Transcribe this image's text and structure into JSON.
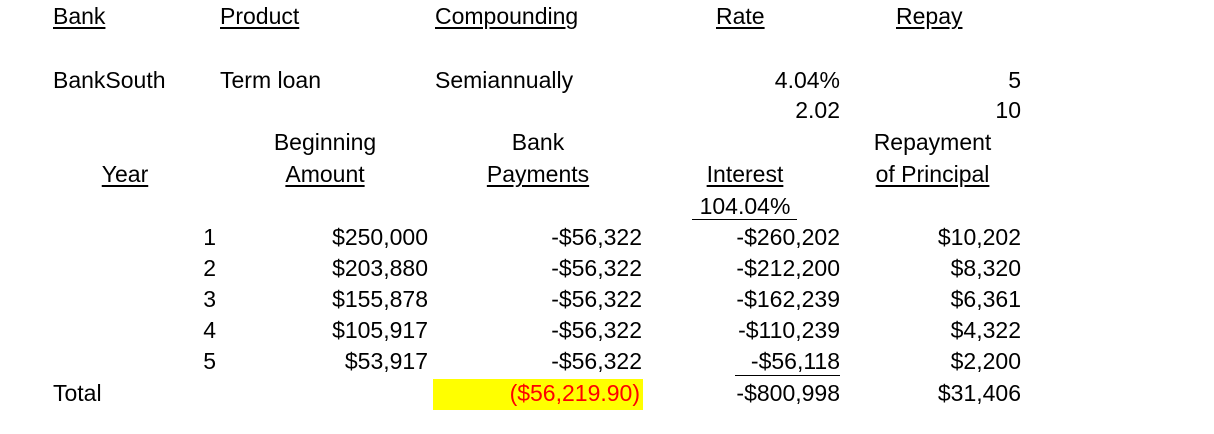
{
  "header": {
    "bank": "Bank",
    "product": "Product",
    "compounding": "Compounding",
    "rate": "Rate",
    "repay": "Repay"
  },
  "detail": {
    "bank": "BankSouth",
    "product": "Term loan",
    "compounding": "Semiannually",
    "rate": "4.04%",
    "repay": "5",
    "rate_2": "2.02",
    "repay_2": "10"
  },
  "table": {
    "col_year": "Year",
    "col_beginning_1": "Beginning",
    "col_beginning_2": "Amount",
    "col_payments_1": "Bank",
    "col_payments_2": "Payments",
    "col_interest": "Interest",
    "col_repayment_1": "Repayment",
    "col_repayment_2": "of Principal",
    "interest_rate": "104.04%",
    "rows": [
      {
        "year": "1",
        "beginning": "$250,000",
        "payment": "-$56,322",
        "interest": "-$260,202",
        "repayment": "$10,202"
      },
      {
        "year": "2",
        "beginning": "$203,880",
        "payment": "-$56,322",
        "interest": "-$212,200",
        "repayment": "$8,320"
      },
      {
        "year": "3",
        "beginning": "$155,878",
        "payment": "-$56,322",
        "interest": "-$162,239",
        "repayment": "$6,361"
      },
      {
        "year": "4",
        "beginning": "$105,917",
        "payment": "-$56,322",
        "interest": "-$110,239",
        "repayment": "$4,322"
      },
      {
        "year": "5",
        "beginning": "$53,917",
        "payment": "-$56,322",
        "interest": "-$56,118",
        "repayment": "$2,200"
      }
    ],
    "total": {
      "label": "Total",
      "payment": "($56,219.90)",
      "interest": "-$800,998",
      "repayment": "$31,406"
    }
  },
  "colors": {
    "highlight": "#ffff00",
    "total_payment_text": "#ff0000"
  }
}
